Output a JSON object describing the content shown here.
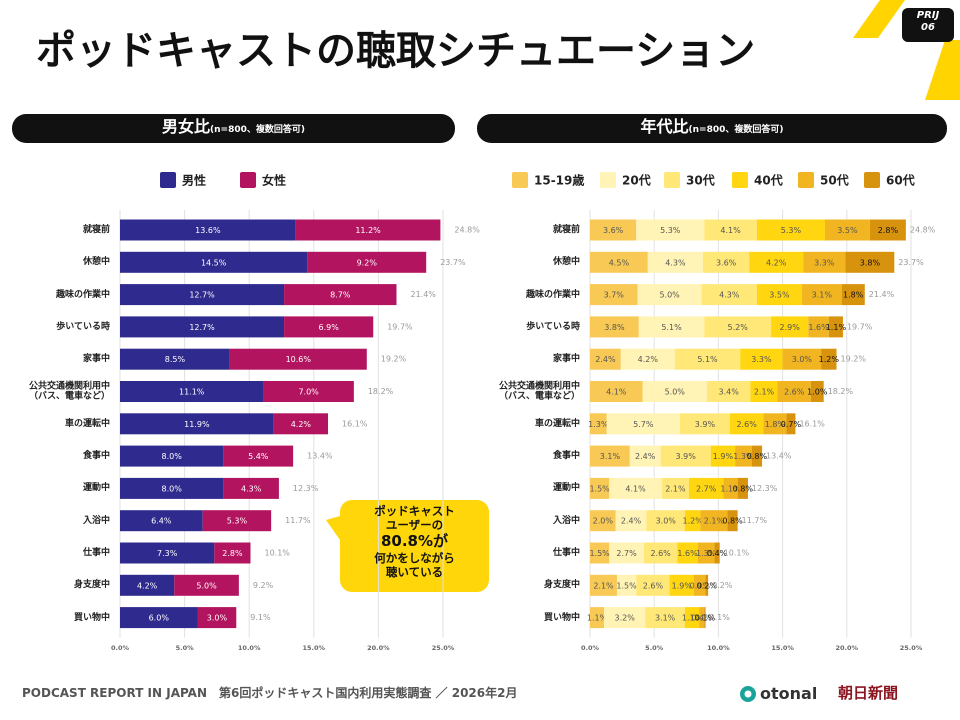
{
  "header": {
    "title": "ポッドキャストの聴取シチュエーション",
    "badge": "PRIJ\n06"
  },
  "callout": {
    "lines": [
      "ポッドキャスト",
      "ユーザーの",
      "80.8%が",
      "何かをしながら",
      "聴いている"
    ]
  },
  "footer": {
    "text": "PODCAST REPORT IN JAPAN　第6回ポッドキャスト国内利用実態調査 ／ 2026年2月",
    "logo_left": "otonal",
    "logo_right": "朝日新聞"
  },
  "chart_data": [
    {
      "type": "stacked-bar-horizontal",
      "title": "男女比",
      "subtitle": "(n=800、複数回答可)",
      "categories": [
        "就寝前",
        "休憩中",
        "趣味の作業中",
        "歩いている時",
        "家事中",
        "公共交通機関利用中\n（バス、電車など）",
        "車の運転中",
        "食事中",
        "運動中",
        "入浴中",
        "仕事中",
        "身支度中",
        "買い物中"
      ],
      "series": [
        {
          "name": "男性",
          "color": "#2f2a8e",
          "values": [
            13.6,
            14.5,
            12.7,
            12.7,
            8.5,
            11.1,
            11.9,
            8.0,
            8.0,
            6.4,
            7.3,
            4.2,
            6.0
          ],
          "value_labels": [
            "13.6%",
            "14.5%",
            "12.7%",
            "12.7%",
            "8.5%",
            "11.1%",
            "11.9%",
            "8.0%",
            "8.0%",
            "6.4%",
            "7.3%",
            "4.2%",
            "6.0%"
          ]
        },
        {
          "name": "女性",
          "color": "#b3145f",
          "values": [
            11.2,
            9.2,
            8.7,
            6.9,
            10.6,
            7.0,
            4.2,
            5.4,
            4.3,
            5.3,
            2.8,
            5.0,
            3.0
          ],
          "value_labels": [
            "11.2%",
            "9.2%",
            "8.7%",
            "6.9%",
            "10.6%",
            "7.0%",
            "4.2%",
            "5.4%",
            "4.3%",
            "5.3%",
            "2.8%",
            "5.0%",
            "3.0%"
          ]
        }
      ],
      "totals": [
        24.8,
        23.7,
        21.4,
        19.7,
        19.2,
        18.2,
        16.1,
        13.4,
        12.3,
        11.7,
        10.1,
        9.2,
        9.1
      ],
      "total_labels": [
        "24.8%",
        "23.7%",
        "21.4%",
        "19.7%",
        "19.2%",
        "18.2%",
        "16.1%",
        "13.4%",
        "12.3%",
        "11.7%",
        "10.1%",
        "9.2%",
        "9.1%"
      ],
      "xlim": [
        0,
        25
      ],
      "xticks": [
        {
          "value": 0,
          "label": "0.0%"
        },
        {
          "value": 5,
          "label": "5.0%"
        },
        {
          "value": 10,
          "label": "10.0%"
        },
        {
          "value": 15,
          "label": "15.0%"
        },
        {
          "value": 20,
          "label": "20.0%"
        },
        {
          "value": 25,
          "label": "25.0%"
        }
      ],
      "grid": true,
      "label_color": "#ffffff"
    },
    {
      "type": "stacked-bar-horizontal",
      "title": "年代比",
      "subtitle": "(n=800、複数回答可)",
      "categories": [
        "就寝前",
        "休憩中",
        "趣味の作業中",
        "歩いている時",
        "家事中",
        "公共交通機関利用中\n（バス、電車など）",
        "車の運転中",
        "食事中",
        "運動中",
        "入浴中",
        "仕事中",
        "身支度中",
        "買い物中"
      ],
      "series": [
        {
          "name": "15-19歳",
          "color": "#f8c955",
          "values": [
            3.6,
            4.5,
            3.7,
            3.8,
            2.4,
            4.1,
            1.3,
            3.1,
            1.5,
            2.0,
            1.5,
            2.1,
            1.1
          ],
          "value_labels": [
            "3.6%",
            "4.5%",
            "3.7%",
            "3.8%",
            "2.4%",
            "4.1%",
            "1.3%",
            "3.1%",
            "1.5%",
            "2.0%",
            "1.5%",
            "2.1%",
            "1.1%"
          ]
        },
        {
          "name": "20代",
          "color": "#fff4b5",
          "values": [
            5.3,
            4.3,
            5.0,
            5.1,
            4.2,
            5.0,
            5.7,
            2.4,
            4.1,
            2.4,
            2.7,
            1.5,
            3.2
          ],
          "value_labels": [
            "5.3%",
            "4.3%",
            "5.0%",
            "5.1%",
            "4.2%",
            "5.0%",
            "5.7%",
            "2.4%",
            "4.1%",
            "2.4%",
            "2.7%",
            "1.5%",
            "3.2%"
          ]
        },
        {
          "name": "30代",
          "color": "#ffe877",
          "values": [
            4.1,
            3.6,
            4.3,
            5.2,
            5.1,
            3.4,
            3.9,
            3.9,
            2.1,
            3.0,
            2.6,
            2.6,
            3.1
          ],
          "value_labels": [
            "4.1%",
            "3.6%",
            "4.3%",
            "5.2%",
            "5.1%",
            "3.4%",
            "3.9%",
            "3.9%",
            "2.1%",
            "3.0%",
            "2.6%",
            "2.6%",
            "3.1%"
          ]
        },
        {
          "name": "40代",
          "color": "#ffd60f",
          "values": [
            5.3,
            4.2,
            3.5,
            2.9,
            3.3,
            2.1,
            2.6,
            1.9,
            2.7,
            1.2,
            1.6,
            1.9,
            1.1
          ],
          "value_labels": [
            "5.3%",
            "4.2%",
            "3.5%",
            "2.9%",
            "3.3%",
            "2.1%",
            "2.6%",
            "1.9%",
            "2.7%",
            "1.2%",
            "1.6%",
            "1.9%",
            "1.1%"
          ]
        },
        {
          "name": "50代",
          "color": "#f1b522",
          "values": [
            3.5,
            3.3,
            3.1,
            1.6,
            3.0,
            2.6,
            1.8,
            1.3,
            1.1,
            2.1,
            1.3,
            0.9,
            0.4
          ],
          "value_labels": [
            "3.5%",
            "3.3%",
            "3.1%",
            "1.6%",
            "3.0%",
            "2.6%",
            "1.8%",
            "1.3%",
            "1.1%",
            "2.1%",
            "1.3%",
            "0.9%",
            "0.4%"
          ]
        },
        {
          "name": "60代",
          "color": "#d8930e",
          "values": [
            2.8,
            3.8,
            1.8,
            1.1,
            1.2,
            1.0,
            0.7,
            0.8,
            0.8,
            0.8,
            0.4,
            0.2,
            0.1
          ],
          "value_labels": [
            "2.8%",
            "3.8%",
            "1.8%",
            "1.1%",
            "1.2%",
            "1.0%",
            "0.7%",
            "0.8%",
            "0.8%",
            "0.8%",
            "0.4%",
            "0.2%",
            "0.1%"
          ]
        }
      ],
      "totals": [
        24.8,
        23.7,
        21.4,
        19.7,
        19.2,
        18.2,
        16.1,
        13.4,
        12.3,
        11.7,
        10.1,
        9.2,
        9.1
      ],
      "total_labels": [
        "24.8%",
        "23.7%",
        "21.4%",
        "19.7%",
        "19.2%",
        "18.2%",
        "16.1%",
        "13.4%",
        "12.3%",
        "11.7%",
        "10.1%",
        "9.2%",
        "9.1%"
      ],
      "xlim": [
        0,
        25
      ],
      "xticks": [
        {
          "value": 0,
          "label": "0.0%"
        },
        {
          "value": 5,
          "label": "5.0%"
        },
        {
          "value": 10,
          "label": "10.0%"
        },
        {
          "value": 15,
          "label": "15.0%"
        },
        {
          "value": 20,
          "label": "20.0%"
        },
        {
          "value": 25,
          "label": "25.0%"
        }
      ],
      "grid": true,
      "label_color": "#555555"
    }
  ]
}
